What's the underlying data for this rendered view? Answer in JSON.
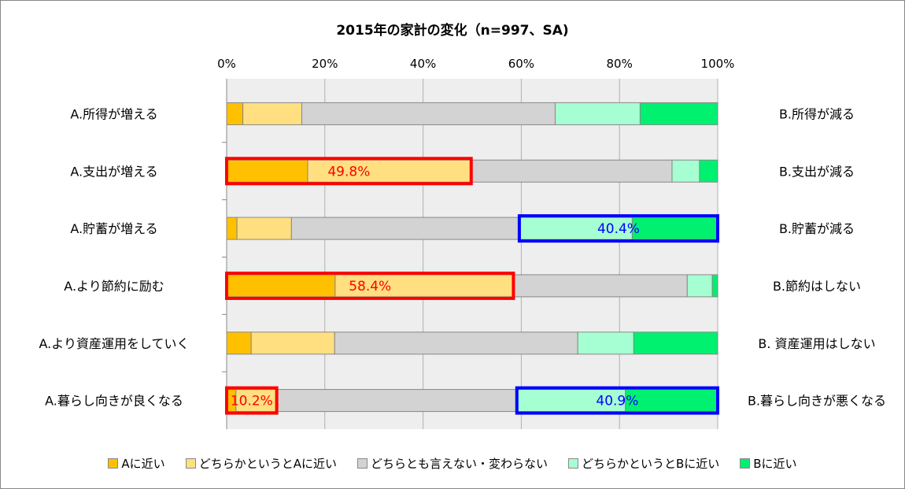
{
  "chart_data": {
    "type": "bar",
    "stacked": "100%",
    "orientation": "horizontal",
    "title": "2015年の家計の変化（n=997、SA)",
    "xlim": [
      0,
      100
    ],
    "xticks": [
      "0%",
      "20%",
      "40%",
      "60%",
      "80%",
      "100%"
    ],
    "categories_left": [
      "A.所得が増える",
      "A.支出が増える",
      "A.貯蓄が増える",
      "A.より節約に励む",
      "A.より資産運用をしていく",
      "A.暮らし向きが良くなる"
    ],
    "categories_right": [
      "B.所得が減る",
      "B.支出が減る",
      "B.貯蓄が減る",
      "B.節約はしない",
      "B. 資産運用はしない",
      "B.暮らし向きが悪くなる"
    ],
    "series": [
      {
        "name": "Aに近い",
        "color": "#FFC000",
        "values": [
          3.3,
          16.5,
          2.1,
          22.1,
          5.0,
          1.9
        ]
      },
      {
        "name": "どちらかというとAに近い",
        "color": "#FFDF80",
        "values": [
          12.0,
          33.3,
          11.1,
          36.3,
          17.0,
          8.3
        ]
      },
      {
        "name": "どちらとも言えない・変わらない",
        "color": "#D3D3D3",
        "values": [
          51.6,
          40.9,
          46.4,
          35.4,
          49.5,
          48.9
        ]
      },
      {
        "name": "どちらかというとBに近い",
        "color": "#A6FFD2",
        "values": [
          17.3,
          5.6,
          23.0,
          5.1,
          11.4,
          22.1
        ]
      },
      {
        "name": "Bに近い",
        "color": "#00F070",
        "values": [
          15.8,
          3.7,
          17.4,
          1.1,
          17.1,
          18.8
        ]
      }
    ],
    "annotations": [
      {
        "row": 1,
        "from": 0,
        "to": 49.8,
        "label": "49.8%",
        "color": "#FF0000"
      },
      {
        "row": 2,
        "from": 59.6,
        "to": 100,
        "label": "40.4%",
        "color": "#0000FF"
      },
      {
        "row": 3,
        "from": 0,
        "to": 58.4,
        "label": "58.4%",
        "color": "#FF0000"
      },
      {
        "row": 5,
        "from": 0,
        "to": 10.2,
        "label": "10.2%",
        "color": "#FF0000"
      },
      {
        "row": 5,
        "from": 59.1,
        "to": 100,
        "label": "40.9%",
        "color": "#0000FF"
      }
    ],
    "legend_position": "bottom",
    "grid": true
  }
}
